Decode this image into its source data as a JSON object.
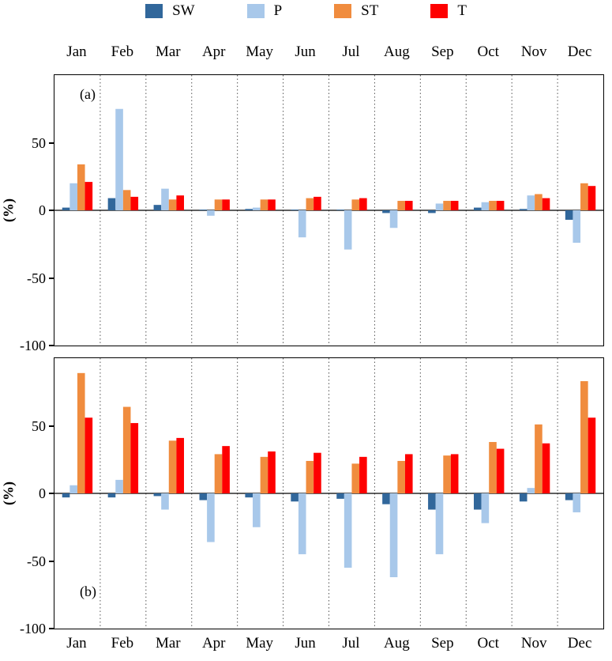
{
  "legend": {
    "items": [
      {
        "label": "SW",
        "color": "#31679b"
      },
      {
        "label": "P",
        "color": "#a8c8ea"
      },
      {
        "label": "ST",
        "color": "#f08c3e"
      },
      {
        "label": "T",
        "color": "#fe0000"
      }
    ]
  },
  "axis": {
    "ylabel": "(%)",
    "ylim": [
      -100,
      100
    ],
    "yticks": [
      50,
      0,
      -50,
      -100
    ]
  },
  "months": [
    "Jan",
    "Feb",
    "Mar",
    "Apr",
    "May",
    "Jun",
    "Jul",
    "Aug",
    "Sep",
    "Oct",
    "Nov",
    "Dec"
  ],
  "chart_data": [
    {
      "type": "bar",
      "panel_label": "(a)",
      "categories": [
        "Jan",
        "Feb",
        "Mar",
        "Apr",
        "May",
        "Jun",
        "Jul",
        "Aug",
        "Sep",
        "Oct",
        "Nov",
        "Dec"
      ],
      "series": [
        {
          "name": "SW",
          "color": "#31679b",
          "values": [
            2,
            9,
            4,
            0.5,
            1,
            0.5,
            0.5,
            -2,
            -2,
            2,
            1,
            -7
          ]
        },
        {
          "name": "P",
          "color": "#a8c8ea",
          "values": [
            20,
            75,
            16,
            -4,
            2,
            -20,
            -29,
            -13,
            5,
            6,
            11,
            -24
          ]
        },
        {
          "name": "ST",
          "color": "#f08c3e",
          "values": [
            34,
            15,
            8,
            8,
            8,
            9,
            8,
            7,
            7,
            7,
            12,
            20
          ]
        },
        {
          "name": "T",
          "color": "#fe0000",
          "values": [
            21,
            10,
            11,
            8,
            8,
            10,
            9,
            7,
            7,
            7,
            9,
            18
          ]
        }
      ],
      "ylabel": "(%)",
      "ylim": [
        -100,
        100
      ],
      "yticks": [
        50,
        0,
        -50,
        -100
      ],
      "grid": "vertical-dotted",
      "legend_position": "top"
    },
    {
      "type": "bar",
      "panel_label": "(b)",
      "categories": [
        "Jan",
        "Feb",
        "Mar",
        "Apr",
        "May",
        "Jun",
        "Jul",
        "Aug",
        "Sep",
        "Oct",
        "Nov",
        "Dec"
      ],
      "series": [
        {
          "name": "SW",
          "color": "#31679b",
          "values": [
            -3,
            -3,
            -2,
            -5,
            -3,
            -6,
            -4,
            -8,
            -12,
            -12,
            -6,
            -5
          ]
        },
        {
          "name": "P",
          "color": "#a8c8ea",
          "values": [
            6,
            10,
            -12,
            -36,
            -25,
            -45,
            -55,
            -62,
            -45,
            -22,
            4,
            -14
          ]
        },
        {
          "name": "ST",
          "color": "#f08c3e",
          "values": [
            89,
            64,
            39,
            29,
            27,
            24,
            22,
            24,
            28,
            38,
            51,
            83
          ]
        },
        {
          "name": "T",
          "color": "#fe0000",
          "values": [
            56,
            52,
            41,
            35,
            31,
            30,
            27,
            29,
            29,
            33,
            37,
            56
          ]
        }
      ],
      "ylabel": "(%)",
      "ylim": [
        -100,
        100
      ],
      "yticks": [
        50,
        0,
        -50,
        -100
      ],
      "grid": "vertical-dotted",
      "legend_position": "top"
    }
  ]
}
